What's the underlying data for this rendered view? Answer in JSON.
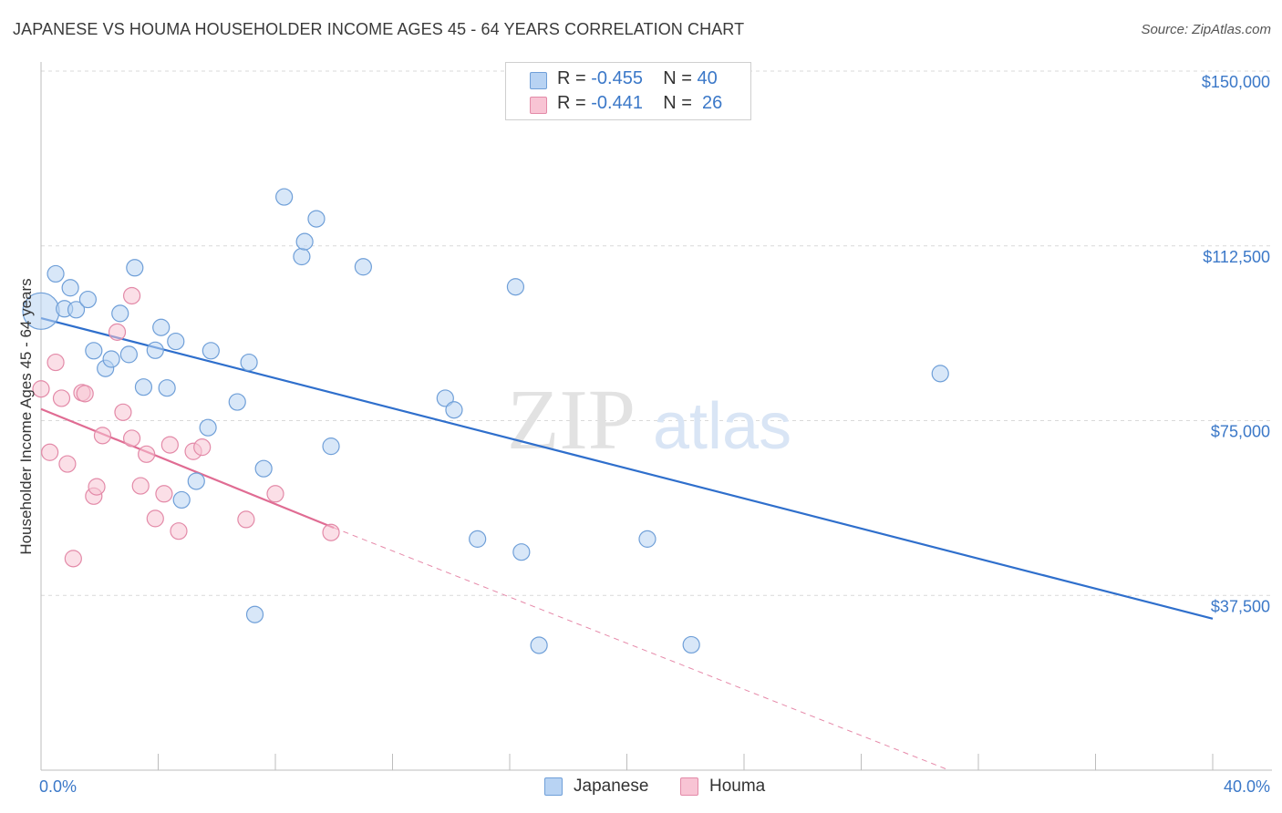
{
  "title": "JAPANESE VS HOUMA HOUSEHOLDER INCOME AGES 45 - 64 YEARS CORRELATION CHART",
  "source": "Source: ZipAtlas.com",
  "watermark": {
    "zip": "ZIP",
    "atlas": "atlas"
  },
  "legend_top": {
    "rows": [
      {
        "r_label": "R =",
        "r_value": "-0.455",
        "n_label": "N =",
        "n_value": "40",
        "color": "#b8d3f3",
        "border": "#6f9fd8"
      },
      {
        "r_label": "R =",
        "r_value": "-0.441",
        "n_label": "N =",
        "n_value": "26",
        "color": "#f8c4d4",
        "border": "#e38aa8"
      }
    ]
  },
  "legend_bottom": [
    {
      "label": "Japanese",
      "color": "#b8d3f3",
      "border": "#6f9fd8"
    },
    {
      "label": "Houma",
      "color": "#f8c4d4",
      "border": "#e38aa8"
    }
  ],
  "chart_data": {
    "type": "scatter",
    "title": "JAPANESE VS HOUMA HOUSEHOLDER INCOME AGES 45 - 64 YEARS CORRELATION CHART",
    "xlabel": "",
    "ylabel": "Householder Income Ages 45 - 64 years",
    "xlim": [
      0,
      40
    ],
    "ylim": [
      0,
      150000
    ],
    "x_tick_labels": [
      "0.0%",
      "40.0%"
    ],
    "y_ticks": [
      37500,
      75000,
      112500,
      150000
    ],
    "y_tick_labels": [
      "$37,500",
      "$75,000",
      "$112,500",
      "$150,000"
    ],
    "grid": true,
    "legend_position": "top-center",
    "series": [
      {
        "name": "Japanese",
        "color": "#6f9fd8",
        "fill": "#b8d3f3",
        "line_color": "#2f6fcc",
        "trend": {
          "x": [
            0,
            40
          ],
          "y": [
            97000,
            32500
          ],
          "dashed_ext": false
        },
        "points": [
          {
            "x": 0.0,
            "y": 98500,
            "big": true
          },
          {
            "x": 0.5,
            "y": 106500
          },
          {
            "x": 1.0,
            "y": 103500
          },
          {
            "x": 0.8,
            "y": 99000
          },
          {
            "x": 1.2,
            "y": 98800
          },
          {
            "x": 1.6,
            "y": 101000
          },
          {
            "x": 1.8,
            "y": 90000
          },
          {
            "x": 2.2,
            "y": 86200
          },
          {
            "x": 2.4,
            "y": 88200
          },
          {
            "x": 2.7,
            "y": 98000
          },
          {
            "x": 3.0,
            "y": 89200
          },
          {
            "x": 3.2,
            "y": 107800
          },
          {
            "x": 3.5,
            "y": 82200
          },
          {
            "x": 3.9,
            "y": 90100
          },
          {
            "x": 4.1,
            "y": 95000
          },
          {
            "x": 4.3,
            "y": 82000
          },
          {
            "x": 4.6,
            "y": 92000
          },
          {
            "x": 5.3,
            "y": 62000
          },
          {
            "x": 4.8,
            "y": 58000
          },
          {
            "x": 5.8,
            "y": 90000
          },
          {
            "x": 5.7,
            "y": 73500
          },
          {
            "x": 6.7,
            "y": 79000
          },
          {
            "x": 7.1,
            "y": 87500
          },
          {
            "x": 7.6,
            "y": 64700
          },
          {
            "x": 7.3,
            "y": 33400
          },
          {
            "x": 8.3,
            "y": 123000
          },
          {
            "x": 8.9,
            "y": 110200
          },
          {
            "x": 9.0,
            "y": 113400
          },
          {
            "x": 9.4,
            "y": 118300
          },
          {
            "x": 9.9,
            "y": 69500
          },
          {
            "x": 11.0,
            "y": 108000
          },
          {
            "x": 13.8,
            "y": 79800
          },
          {
            "x": 14.1,
            "y": 77300
          },
          {
            "x": 14.9,
            "y": 49600
          },
          {
            "x": 16.2,
            "y": 103700
          },
          {
            "x": 16.4,
            "y": 46800
          },
          {
            "x": 17.0,
            "y": 26800
          },
          {
            "x": 20.7,
            "y": 49600
          },
          {
            "x": 22.2,
            "y": 26900
          },
          {
            "x": 30.7,
            "y": 85100
          }
        ]
      },
      {
        "name": "Houma",
        "color": "#e38aa8",
        "fill": "#f8c4d4",
        "line_color": "#e06c93",
        "trend": {
          "x": [
            0,
            10.0
          ],
          "y": [
            77500,
            52000
          ],
          "dashed_to": [
            31,
            0
          ]
        },
        "points": [
          {
            "x": 0.0,
            "y": 81800
          },
          {
            "x": 0.3,
            "y": 68200
          },
          {
            "x": 0.5,
            "y": 87500
          },
          {
            "x": 0.7,
            "y": 79800
          },
          {
            "x": 0.9,
            "y": 65700
          },
          {
            "x": 1.1,
            "y": 45400
          },
          {
            "x": 1.4,
            "y": 81000
          },
          {
            "x": 1.5,
            "y": 80800
          },
          {
            "x": 1.8,
            "y": 58800
          },
          {
            "x": 1.9,
            "y": 60800
          },
          {
            "x": 2.1,
            "y": 71800
          },
          {
            "x": 2.6,
            "y": 94000
          },
          {
            "x": 2.8,
            "y": 76800
          },
          {
            "x": 3.1,
            "y": 71200
          },
          {
            "x": 3.1,
            "y": 101800
          },
          {
            "x": 3.4,
            "y": 61000
          },
          {
            "x": 3.6,
            "y": 67800
          },
          {
            "x": 3.9,
            "y": 54000
          },
          {
            "x": 4.2,
            "y": 59300
          },
          {
            "x": 4.4,
            "y": 69800
          },
          {
            "x": 4.7,
            "y": 51300
          },
          {
            "x": 5.2,
            "y": 68400
          },
          {
            "x": 5.5,
            "y": 69300
          },
          {
            "x": 7.0,
            "y": 53800
          },
          {
            "x": 8.0,
            "y": 59300
          },
          {
            "x": 9.9,
            "y": 51000
          }
        ]
      }
    ]
  }
}
